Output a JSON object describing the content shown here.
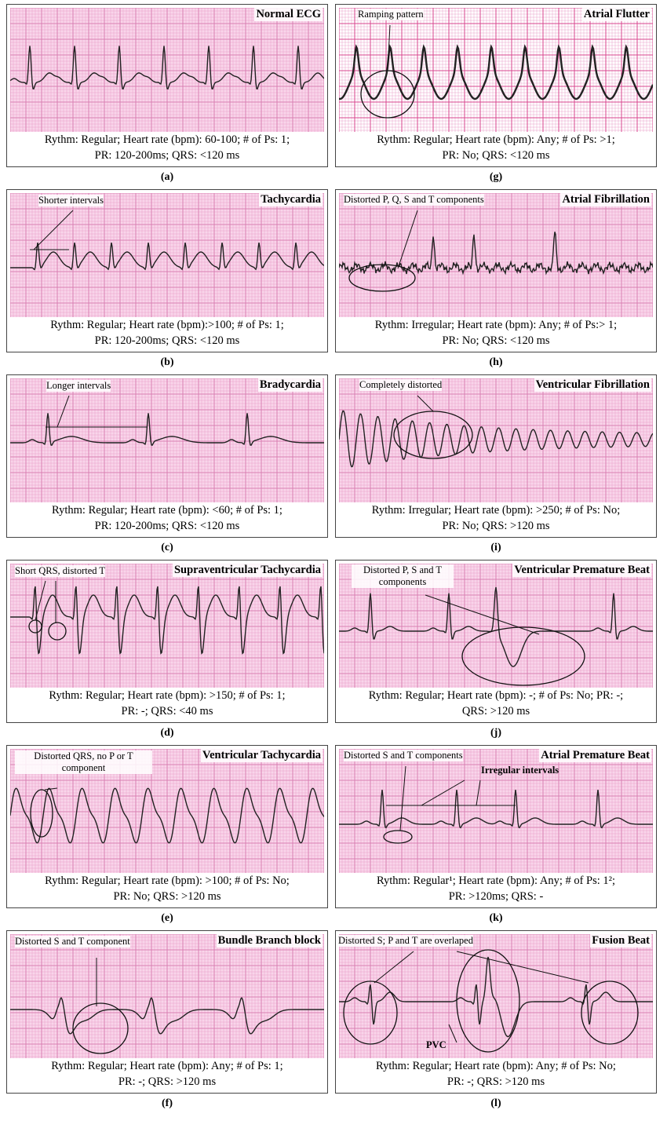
{
  "panels": [
    {
      "label": "(a)",
      "title": "Normal ECG",
      "caption": [
        "Rythm: Regular; Heart rate (bpm): 60-100; # of Ps: 1;",
        "PR: 120-200ms; QRS: <120 ms"
      ]
    },
    {
      "label": "(b)",
      "title": "Tachycardia",
      "annotation": "Shorter intervals",
      "caption": [
        "Rythm: Regular; Heart rate (bpm):>100; # of Ps: 1;",
        "PR: 120-200ms; QRS: <120 ms"
      ]
    },
    {
      "label": "(c)",
      "title": "Bradycardia",
      "annotation": "Longer intervals",
      "caption": [
        "Rythm: Regular; Heart rate (bpm): <60; # of Ps: 1;",
        "PR: 120-200ms; QRS: <120 ms"
      ]
    },
    {
      "label": "(d)",
      "title": "Supraventricular Tachycardia",
      "annotation": "Short QRS, distorted T",
      "caption": [
        "Rythm: Regular; Heart rate (bpm): >150; # of Ps: 1;",
        "PR: -; QRS: <40 ms"
      ]
    },
    {
      "label": "(e)",
      "title": "Ventricular Tachycardia",
      "annotation": "Distorted QRS, no P or T component",
      "caption": [
        "Rythm: Regular; Heart rate (bpm): >100; # of Ps: No;",
        "PR: No; QRS: >120 ms"
      ]
    },
    {
      "label": "(f)",
      "title": "Bundle Branch block",
      "annotation": "Distorted S and T component",
      "caption": [
        "Rythm: Regular; Heart rate (bpm): Any; # of Ps: 1;",
        "PR: -; QRS: >120 ms"
      ]
    },
    {
      "label": "(g)",
      "title": "Atrial Flutter",
      "annotation": "Ramping pattern",
      "caption": [
        "Rythm: Regular; Heart rate (bpm): Any; # of Ps: >1;",
        "PR: No; QRS: <120 ms"
      ]
    },
    {
      "label": "(h)",
      "title": "Atrial Fibrillation",
      "annotation": "Distorted P, Q, S and T components",
      "caption": [
        "Rythm: Irregular; Heart rate (bpm): Any; # of Ps:> 1;",
        "PR: No; QRS: <120 ms"
      ]
    },
    {
      "label": "(i)",
      "title": "Ventricular Fibrillation",
      "annotation": "Completely distorted",
      "caption": [
        "Rythm: Irregular; Heart rate (bpm): >250; # of Ps: No;",
        "PR: No; QRS: >120 ms"
      ]
    },
    {
      "label": "(j)",
      "title": "Ventricular Premature Beat",
      "annotation": "Distorted P, S and T components",
      "caption": [
        "Rythm: Regular; Heart rate (bpm): -; # of Ps: No; PR: -;",
        "QRS: >120 ms"
      ]
    },
    {
      "label": "(k)",
      "title": "Atrial Premature Beat",
      "annotation": "Distorted S and T components",
      "note": "Irregular intervals",
      "caption": [
        "Rythm: Regular¹; Heart rate (bpm): Any; # of Ps: 1²;",
        "PR: >120ms; QRS: -"
      ]
    },
    {
      "label": "(l)",
      "title": "Fusion Beat",
      "annotation": "Distorted S; P and T are overlaped",
      "note": "PVC",
      "caption": [
        "Rythm: Regular; Heart rate (bpm): Any; # of Ps: No;",
        "PR: -; QRS: >120 ms"
      ]
    }
  ]
}
